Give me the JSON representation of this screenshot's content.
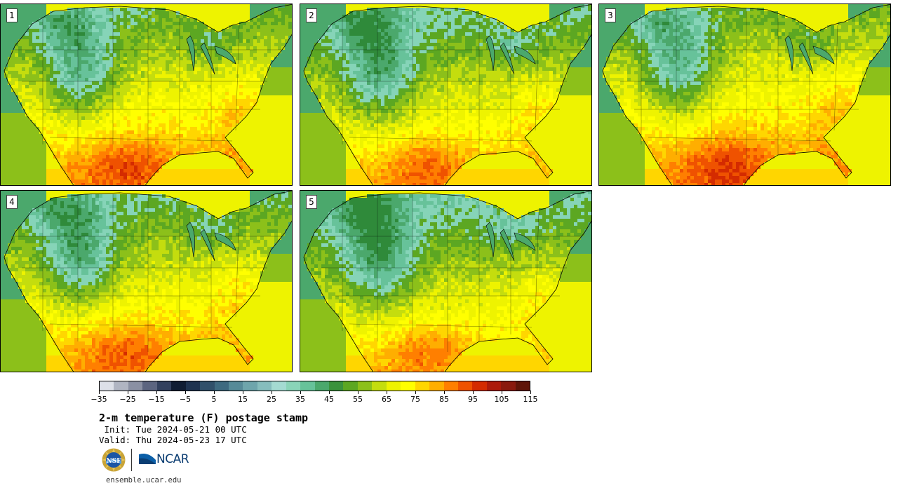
{
  "panels": [
    {
      "label": "1",
      "warm": 0.0
    },
    {
      "label": "2",
      "warm": -0.06
    },
    {
      "label": "3",
      "warm": 0.03
    },
    {
      "label": "4",
      "warm": -0.03
    },
    {
      "label": "5",
      "warm": -0.09
    }
  ],
  "colorbar": {
    "colors": [
      "#dde0e8",
      "#b0b5c2",
      "#8a90a3",
      "#5c6580",
      "#33415e",
      "#101d33",
      "#1f3350",
      "#30506a",
      "#3e6a80",
      "#568a98",
      "#6ea5ac",
      "#86bdbd",
      "#a4dbd2",
      "#8ad4b8",
      "#67c29a",
      "#4ba86c",
      "#3a923c",
      "#5ca722",
      "#8cc01a",
      "#c4dd0e",
      "#eef300",
      "#ffff00",
      "#ffd600",
      "#ffae00",
      "#ff7f00",
      "#ef5200",
      "#d42b00",
      "#ac1a0a",
      "#8a1a0e",
      "#5f1509"
    ],
    "tick_labels": [
      "−35",
      "−25",
      "−15",
      "−5",
      "5",
      "15",
      "25",
      "35",
      "45",
      "55",
      "65",
      "75",
      "85",
      "95",
      "105",
      "115"
    ]
  },
  "title": "2-m temperature (F) postage stamp",
  "init": " Init: Tue 2024-05-21 00 UTC",
  "valid": "Valid: Thu 2024-05-23 17 UTC",
  "logo": {
    "nsf_text": "NSF",
    "ncar_text": "NCAR"
  },
  "url": "ensemble.ucar.edu"
}
